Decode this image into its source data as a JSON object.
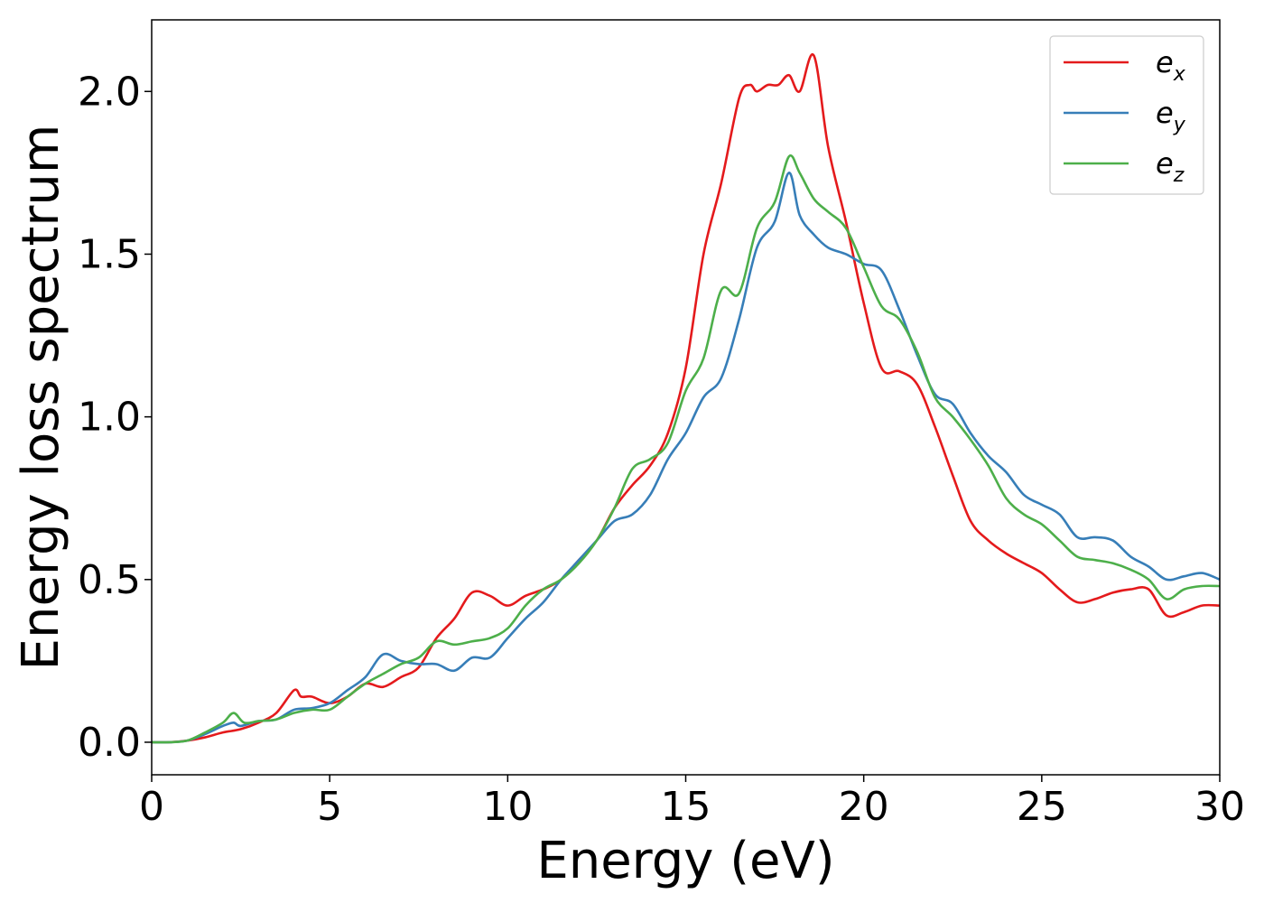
{
  "chart_data": {
    "type": "line",
    "xlabel": "Energy (eV)",
    "ylabel": "Energy loss spectrum",
    "xlim": [
      0,
      30
    ],
    "ylim": [
      -0.1,
      2.22
    ],
    "xticks": [
      0,
      5,
      10,
      15,
      20,
      25,
      30
    ],
    "yticks": [
      0.0,
      0.5,
      1.0,
      1.5,
      2.0
    ],
    "xtick_labels": [
      "0",
      "5",
      "10",
      "15",
      "20",
      "25",
      "30"
    ],
    "ytick_labels": [
      "0.0",
      "0.5",
      "1.0",
      "1.5",
      "2.0"
    ],
    "grid": false,
    "legend_position": "top-right",
    "series": [
      {
        "name": "e_x",
        "label_base": "e",
        "label_sub": "x",
        "color": "#e41a1c",
        "x": [
          0,
          0.5,
          1,
          1.5,
          2,
          2.5,
          3,
          3.5,
          4,
          4.2,
          4.5,
          5,
          5.5,
          6,
          6.5,
          7,
          7.5,
          8,
          8.5,
          9,
          9.5,
          10,
          10.5,
          11,
          11.5,
          12,
          12.5,
          13,
          13.5,
          14,
          14.5,
          15,
          15.5,
          16,
          16.5,
          16.8,
          17,
          17.3,
          17.6,
          17.9,
          18.2,
          18.6,
          19,
          19.5,
          20,
          20.5,
          21,
          21.5,
          22,
          22.5,
          23,
          23.5,
          24,
          24.5,
          25,
          25.5,
          26,
          26.5,
          27,
          27.5,
          28,
          28.5,
          29,
          29.5,
          30
        ],
        "y": [
          0,
          0,
          0.005,
          0.015,
          0.03,
          0.04,
          0.06,
          0.09,
          0.16,
          0.14,
          0.14,
          0.12,
          0.14,
          0.18,
          0.17,
          0.2,
          0.23,
          0.32,
          0.38,
          0.46,
          0.45,
          0.42,
          0.45,
          0.47,
          0.5,
          0.56,
          0.62,
          0.72,
          0.79,
          0.85,
          0.95,
          1.15,
          1.5,
          1.72,
          1.98,
          2.02,
          2.0,
          2.02,
          2.02,
          2.05,
          2.0,
          2.11,
          1.83,
          1.6,
          1.35,
          1.15,
          1.14,
          1.1,
          0.97,
          0.82,
          0.68,
          0.62,
          0.58,
          0.55,
          0.52,
          0.47,
          0.43,
          0.44,
          0.46,
          0.47,
          0.47,
          0.39,
          0.4,
          0.42,
          0.42
        ]
      },
      {
        "name": "e_y",
        "label_base": "e",
        "label_sub": "y",
        "color": "#377eb8",
        "x": [
          0,
          0.5,
          1,
          1.5,
          2,
          2.3,
          2.5,
          3,
          3.5,
          4,
          4.5,
          5,
          5.5,
          6,
          6.5,
          7,
          7.5,
          8,
          8.5,
          9,
          9.5,
          10,
          10.5,
          11,
          11.5,
          12,
          12.5,
          13,
          13.5,
          14,
          14.5,
          15,
          15.5,
          16,
          16.5,
          17,
          17.5,
          17.9,
          18.2,
          18.6,
          19,
          19.5,
          20,
          20.5,
          21,
          21.5,
          22,
          22.5,
          23,
          23.5,
          24,
          24.5,
          25,
          25.5,
          26,
          26.5,
          27,
          27.5,
          28,
          28.5,
          29,
          29.5,
          30
        ],
        "y": [
          0,
          0,
          0.005,
          0.025,
          0.05,
          0.06,
          0.05,
          0.065,
          0.07,
          0.1,
          0.105,
          0.12,
          0.16,
          0.2,
          0.27,
          0.25,
          0.24,
          0.24,
          0.22,
          0.26,
          0.26,
          0.32,
          0.38,
          0.43,
          0.5,
          0.56,
          0.62,
          0.68,
          0.7,
          0.76,
          0.87,
          0.95,
          1.06,
          1.12,
          1.3,
          1.52,
          1.6,
          1.75,
          1.62,
          1.56,
          1.52,
          1.5,
          1.47,
          1.45,
          1.33,
          1.19,
          1.07,
          1.04,
          0.95,
          0.88,
          0.83,
          0.76,
          0.73,
          0.7,
          0.63,
          0.63,
          0.62,
          0.57,
          0.54,
          0.5,
          0.51,
          0.52,
          0.5
        ]
      },
      {
        "name": "e_z",
        "label_base": "e",
        "label_sub": "z",
        "color": "#4daf4a",
        "x": [
          0,
          0.5,
          1,
          1.5,
          2,
          2.3,
          2.6,
          3,
          3.5,
          4,
          4.5,
          5,
          5.5,
          6,
          6.5,
          7,
          7.5,
          8,
          8.5,
          9,
          9.5,
          10,
          10.5,
          11,
          11.5,
          12,
          12.5,
          13,
          13.5,
          14,
          14.5,
          15,
          15.5,
          16,
          16.5,
          17,
          17.5,
          17.9,
          18.2,
          18.6,
          19,
          19.5,
          20,
          20.5,
          21,
          21.5,
          22,
          22.5,
          23,
          23.5,
          24,
          24.5,
          25,
          25.5,
          26,
          26.5,
          27,
          27.5,
          28,
          28.5,
          29,
          29.5,
          30
        ],
        "y": [
          0,
          0,
          0.005,
          0.03,
          0.06,
          0.09,
          0.06,
          0.065,
          0.07,
          0.09,
          0.1,
          0.1,
          0.14,
          0.18,
          0.21,
          0.24,
          0.26,
          0.31,
          0.3,
          0.31,
          0.32,
          0.35,
          0.42,
          0.47,
          0.5,
          0.55,
          0.62,
          0.72,
          0.84,
          0.87,
          0.92,
          1.08,
          1.18,
          1.39,
          1.38,
          1.58,
          1.66,
          1.8,
          1.75,
          1.67,
          1.63,
          1.58,
          1.46,
          1.34,
          1.3,
          1.2,
          1.06,
          1.0,
          0.93,
          0.85,
          0.75,
          0.7,
          0.67,
          0.62,
          0.57,
          0.56,
          0.55,
          0.53,
          0.5,
          0.44,
          0.47,
          0.48,
          0.48
        ]
      }
    ]
  }
}
